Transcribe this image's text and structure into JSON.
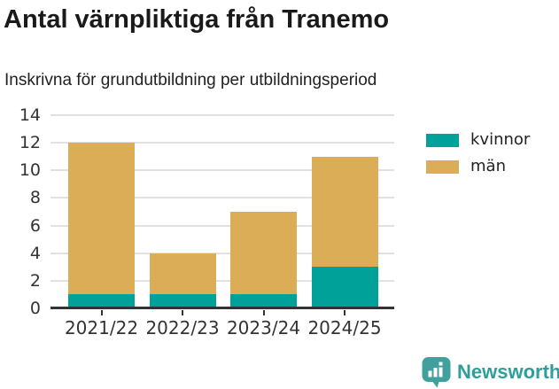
{
  "title": "Antal värnpliktiga från Tranemo",
  "subtitle": "Inskrivna för grundutbildning per utbildningsperiod",
  "legend": {
    "items": [
      {
        "label": "kvinnor",
        "color": "#00a199"
      },
      {
        "label": "män",
        "color": "#dbad57"
      }
    ],
    "position": "right"
  },
  "chart_data": {
    "type": "bar",
    "stacked": true,
    "title": "Antal värnpliktiga från Tranemo",
    "subtitle": "Inskrivna för grundutbildning per utbildningsperiod",
    "categories": [
      "2021/22",
      "2022/23",
      "2023/24",
      "2024/25"
    ],
    "series": [
      {
        "name": "kvinnor",
        "color": "#00a199",
        "values": [
          1,
          1,
          1,
          3
        ]
      },
      {
        "name": "män",
        "color": "#dbad57",
        "values": [
          11,
          3,
          6,
          8
        ]
      }
    ],
    "totals": [
      12,
      4,
      7,
      11
    ],
    "xlabel": "",
    "ylabel": "",
    "ylim": [
      0,
      14
    ],
    "yticks": [
      0,
      2,
      4,
      6,
      8,
      10,
      12,
      14
    ],
    "grid": true,
    "gridline_color": "#e1e1e1",
    "axis_color": "#333333",
    "legend_position": "right"
  },
  "branding": {
    "logo_text": "Newsworthy",
    "logo_icon": "bar-chart-speech-bubble-icon",
    "color": "#2f9e9a",
    "bubble_color": "#40a09d"
  }
}
